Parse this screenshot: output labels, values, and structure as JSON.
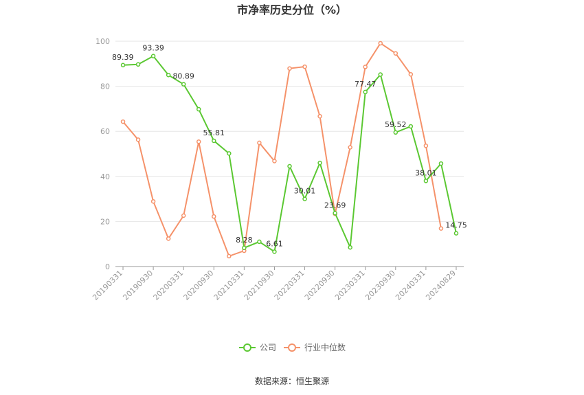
{
  "source": "数据来源：恒生聚源",
  "colors": {
    "company": "#5bc832",
    "industry": "#f5926a",
    "grid": "#e6e6e6",
    "axis": "#999999"
  },
  "chart_data": {
    "type": "line",
    "title": "市净率历史分位（%）",
    "ylim": [
      0,
      100
    ],
    "yticks": [
      "0",
      "20",
      "40",
      "60",
      "80",
      "100"
    ],
    "xtick_labels": [
      "20190331",
      "20190930",
      "20200331",
      "20200930",
      "20210331",
      "20210930",
      "20220331",
      "20220930",
      "20230331",
      "20230930",
      "20240331",
      "20240829"
    ],
    "grid": true,
    "legend_position": "bottom-center",
    "series": [
      {
        "name": "公司",
        "values": [
          89.39,
          89.7,
          93.39,
          85.0,
          80.89,
          69.8,
          55.81,
          50.2,
          8.28,
          11.0,
          6.61,
          44.5,
          30.01,
          46.0,
          23.69,
          8.5,
          77.47,
          85.2,
          59.52,
          62.2,
          38.01,
          45.7,
          14.75
        ],
        "labels": [
          "89.39",
          "",
          "93.39",
          "",
          "80.89",
          "",
          "55.81",
          "",
          "8.28",
          "",
          "6.61",
          "",
          "30.01",
          "",
          "23.69",
          "",
          "77.47",
          "",
          "59.52",
          "",
          "38.01",
          "",
          "14.75"
        ]
      },
      {
        "name": "行业中位数",
        "values": [
          64.3,
          56.3,
          28.9,
          12.4,
          22.6,
          55.4,
          22.2,
          4.6,
          7.0,
          54.9,
          46.8,
          87.9,
          88.7,
          66.7,
          23.4,
          52.9,
          88.6,
          99.1,
          94.6,
          85.3,
          53.6,
          16.9,
          null
        ],
        "labels": []
      }
    ]
  }
}
